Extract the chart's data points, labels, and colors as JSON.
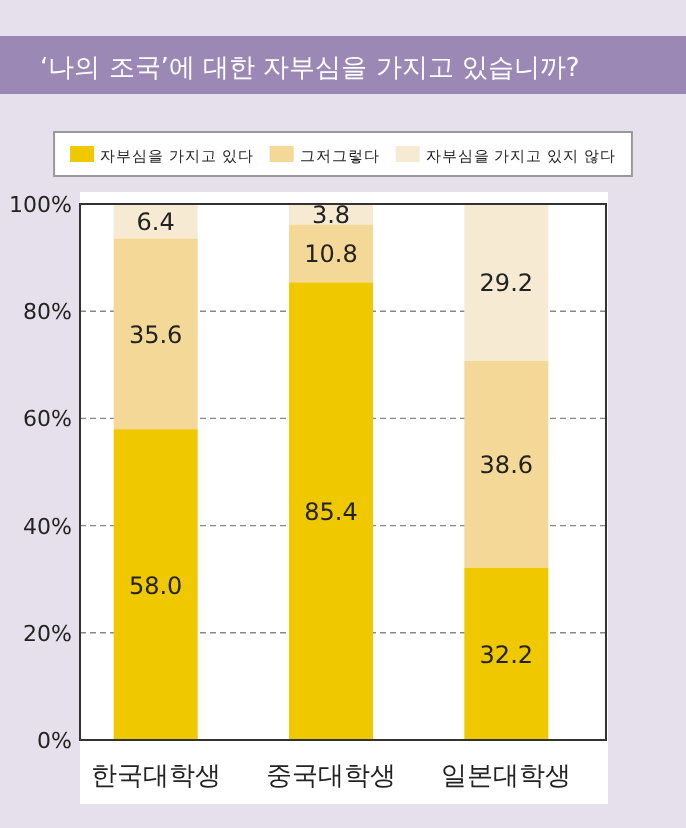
{
  "chart_data": {
    "type": "bar",
    "title": "‘나의 조국’에 대한 자부심을 가지고 있습니까?",
    "categories": [
      "한국대학생",
      "중국대학생",
      "일본대학생"
    ],
    "stacked": true,
    "series": [
      {
        "name": "자부심을 가지고 있다",
        "color": "#f0c800",
        "values": [
          58.0,
          85.4,
          32.2
        ],
        "value_labels": [
          "58.0",
          "85.4",
          "32.2"
        ]
      },
      {
        "name": "그저그렇다",
        "color": "#f3d898",
        "values": [
          35.6,
          10.8,
          38.6
        ],
        "value_labels": [
          "35.6",
          "10.8",
          "38.6"
        ]
      },
      {
        "name": "자부심을 가지고 있지 않다",
        "color": "#f6ead2",
        "values": [
          6.4,
          3.8,
          29.2
        ],
        "value_labels": [
          "6.4",
          "3.8",
          "29.2"
        ]
      }
    ],
    "ylim": [
      0,
      100
    ],
    "yticks": [
      {
        "value": 0,
        "label": "0%"
      },
      {
        "value": 20,
        "label": "20%"
      },
      {
        "value": 40,
        "label": "40%"
      },
      {
        "value": 60,
        "label": "60%"
      },
      {
        "value": 80,
        "label": "80%"
      },
      {
        "value": 100,
        "label": "100%"
      }
    ],
    "grid": "y",
    "legend": "top"
  }
}
